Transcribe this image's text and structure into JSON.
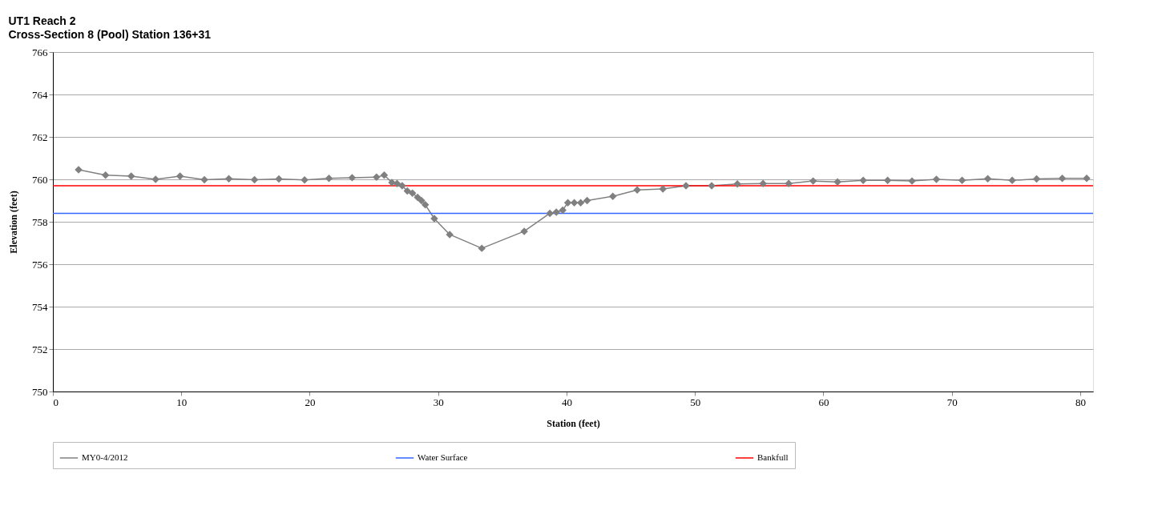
{
  "chart_data": {
    "type": "line",
    "title": "UT1 Reach 2",
    "subtitle": "Cross-Section 8 (Pool) Station 136+31",
    "xlabel": "Station (feet)",
    "ylabel": "Elevation (feet)",
    "xlim": [
      0,
      81
    ],
    "xticks": [
      0,
      10,
      20,
      30,
      40,
      50,
      60,
      70,
      80
    ],
    "ylim": [
      750,
      766
    ],
    "yticks": [
      750,
      752,
      754,
      756,
      758,
      760,
      762,
      764,
      766
    ],
    "grid": "y",
    "legend": "bottom",
    "series": [
      {
        "name": "MY0-4/2012",
        "color": "#808080",
        "marker": "diamond",
        "x": [
          2.0,
          4.1,
          6.1,
          8.0,
          9.9,
          11.8,
          13.7,
          15.7,
          17.6,
          19.6,
          21.5,
          23.3,
          25.2,
          25.8,
          26.4,
          26.8,
          27.2,
          27.6,
          28.0,
          28.4,
          28.7,
          29.0,
          29.7,
          30.9,
          33.4,
          36.7,
          38.7,
          39.2,
          39.7,
          40.1,
          40.6,
          41.1,
          41.6,
          43.6,
          45.5,
          47.5,
          49.3,
          51.3,
          53.3,
          55.3,
          57.3,
          59.2,
          61.1,
          63.1,
          65.0,
          66.9,
          68.8,
          70.8,
          72.8,
          74.7,
          76.6,
          78.6,
          80.5
        ],
        "values": [
          760.45,
          760.2,
          760.15,
          760.0,
          760.15,
          759.98,
          760.03,
          759.98,
          760.02,
          759.97,
          760.05,
          760.08,
          760.1,
          760.2,
          759.85,
          759.8,
          759.7,
          759.45,
          759.35,
          759.15,
          759.0,
          758.8,
          758.15,
          757.4,
          756.75,
          757.55,
          758.4,
          758.45,
          758.55,
          758.9,
          758.9,
          758.9,
          759.0,
          759.2,
          759.5,
          759.55,
          759.7,
          759.7,
          759.78,
          759.8,
          759.8,
          759.92,
          759.88,
          759.95,
          759.95,
          759.92,
          760.0,
          759.95,
          760.03,
          759.95,
          760.02,
          760.05,
          760.05
        ]
      },
      {
        "name": "Water Surface",
        "color": "#3366ff",
        "marker": "none",
        "x": [
          0,
          81
        ],
        "values": [
          758.4,
          758.4
        ]
      },
      {
        "name": "Bankfull",
        "color": "#ff0000",
        "marker": "none",
        "x": [
          0,
          81
        ],
        "values": [
          759.7,
          759.7
        ]
      }
    ]
  }
}
